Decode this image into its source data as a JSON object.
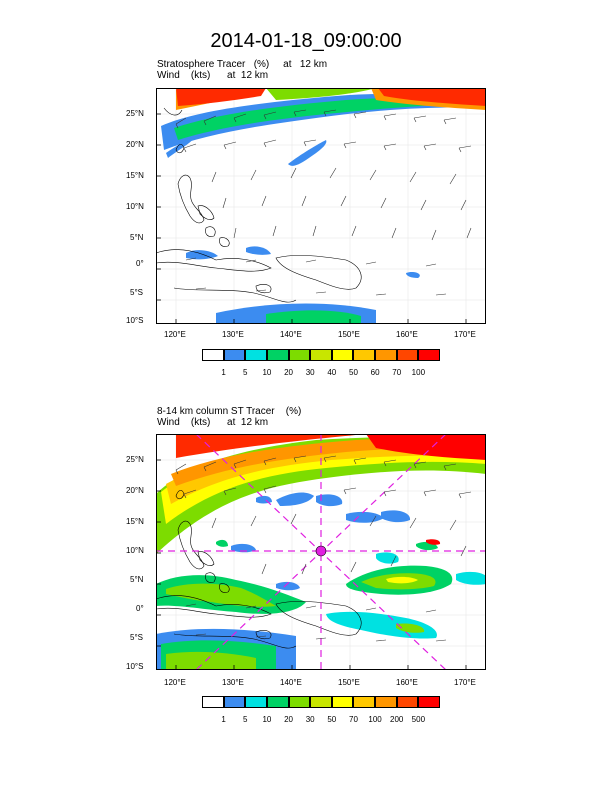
{
  "page": {
    "title": "2014-01-18_09:00:00"
  },
  "panels": [
    {
      "subtitle_line1": "Stratosphere Tracer   (%)     at   12 km",
      "subtitle_line2": "Wind    (kts)      at  12 km",
      "lat_labels": [
        "25°N",
        "20°N",
        "15°N",
        "10°N",
        "5°N",
        "0°",
        "5°S",
        "10°S"
      ],
      "lon_labels": [
        "120°E",
        "130°E",
        "140°E",
        "150°E",
        "160°E",
        "170°E"
      ],
      "colorbar": {
        "labels": [
          "1",
          "5",
          "10",
          "20",
          "30",
          "40",
          "50",
          "60",
          "70",
          "100"
        ],
        "colors": [
          "#ffffff",
          "#3c8cf0",
          "#00e1e1",
          "#00d264",
          "#7ddc00",
          "#c8e600",
          "#ffff00",
          "#ffc800",
          "#ff9600",
          "#ff4600",
          "#ff0000"
        ]
      }
    },
    {
      "subtitle_line1": "8-14 km column ST Tracer    (%)",
      "subtitle_line2": "Wind    (kts)      at  12 km",
      "lat_labels": [
        "25°N",
        "20°N",
        "15°N",
        "10°N",
        "5°N",
        "0°",
        "5°S",
        "10°S"
      ],
      "lon_labels": [
        "120°E",
        "130°E",
        "140°E",
        "150°E",
        "160°E",
        "170°E"
      ],
      "colorbar": {
        "labels": [
          "1",
          "5",
          "10",
          "20",
          "30",
          "50",
          "70",
          "100",
          "200",
          "500"
        ],
        "colors": [
          "#ffffff",
          "#3c8cf0",
          "#00e1e1",
          "#00d264",
          "#7ddc00",
          "#c8e600",
          "#ffff00",
          "#ffc800",
          "#ff9600",
          "#ff4600",
          "#ff0000"
        ]
      }
    }
  ]
}
